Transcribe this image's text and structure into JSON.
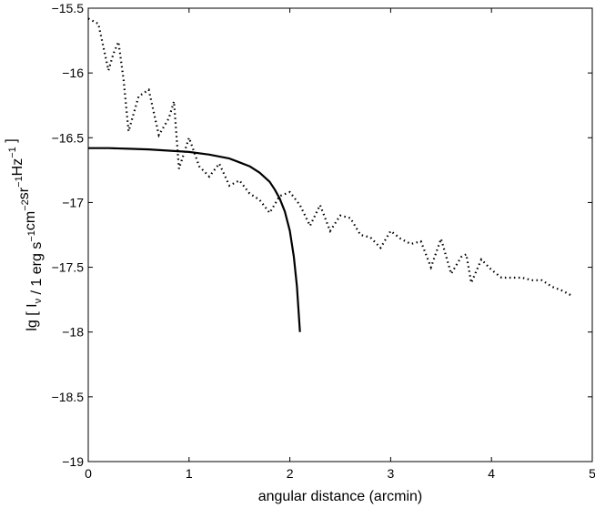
{
  "chart_data": {
    "type": "line",
    "xlabel": "angular distance (arcmin)",
    "ylabel": {
      "text": "lg [ I / 1 erg s cm sr Hz ]",
      "parts": [
        {
          "t": "lg [ I"
        },
        {
          "t": "ν",
          "sub": true
        },
        {
          "t": " / 1 erg s"
        },
        {
          "t": "−1",
          "sup": true
        },
        {
          "t": "cm"
        },
        {
          "t": "−2",
          "sup": true
        },
        {
          "t": "sr"
        },
        {
          "t": "−1",
          "sup": true
        },
        {
          "t": "Hz"
        },
        {
          "t": "−1",
          "sup": true
        },
        {
          "t": " ]"
        }
      ]
    },
    "xlim": [
      0,
      5
    ],
    "ylim": [
      -19,
      -15.5
    ],
    "xticks": [
      0,
      1,
      2,
      3,
      4,
      5
    ],
    "yticks": [
      -19,
      -18.5,
      -18,
      -17.5,
      -17,
      -16.5,
      -16,
      -15.5
    ],
    "xtick_labels": [
      "0",
      "1",
      "2",
      "3",
      "4",
      "5"
    ],
    "ytick_labels": [
      "−19",
      "−18.5",
      "−18",
      "−17.5",
      "−17",
      "−16.5",
      "−16",
      "−15.5"
    ],
    "grid": false,
    "series": [
      {
        "style": "solid",
        "color": "#000000",
        "x": [
          0,
          0.2,
          0.4,
          0.6,
          0.8,
          1.0,
          1.2,
          1.4,
          1.5,
          1.6,
          1.7,
          1.8,
          1.85,
          1.9,
          1.95,
          2.0,
          2.04,
          2.07,
          2.1
        ],
        "y": [
          -16.58,
          -16.58,
          -16.585,
          -16.59,
          -16.6,
          -16.61,
          -16.63,
          -16.66,
          -16.69,
          -16.72,
          -16.77,
          -16.84,
          -16.9,
          -16.97,
          -17.07,
          -17.22,
          -17.42,
          -17.65,
          -18.0
        ]
      },
      {
        "style": "dotted",
        "color": "#000000",
        "x": [
          0,
          0.1,
          0.2,
          0.25,
          0.3,
          0.35,
          0.4,
          0.5,
          0.6,
          0.7,
          0.8,
          0.85,
          0.9,
          1.0,
          1.1,
          1.2,
          1.3,
          1.4,
          1.5,
          1.6,
          1.7,
          1.8,
          1.9,
          2.0,
          2.1,
          2.2,
          2.3,
          2.4,
          2.5,
          2.6,
          2.7,
          2.8,
          2.9,
          3.0,
          3.1,
          3.2,
          3.3,
          3.4,
          3.5,
          3.6,
          3.7,
          3.75,
          3.8,
          3.9,
          4.0,
          4.1,
          4.2,
          4.3,
          4.4,
          4.5,
          4.6,
          4.7,
          4.8
        ],
        "y": [
          -15.58,
          -15.62,
          -15.98,
          -15.85,
          -15.76,
          -16.05,
          -16.45,
          -16.18,
          -16.13,
          -16.48,
          -16.35,
          -16.22,
          -16.74,
          -16.5,
          -16.72,
          -16.8,
          -16.7,
          -16.87,
          -16.83,
          -16.93,
          -16.98,
          -17.08,
          -16.95,
          -16.92,
          -17.02,
          -17.18,
          -17.02,
          -17.22,
          -17.1,
          -17.12,
          -17.25,
          -17.27,
          -17.35,
          -17.22,
          -17.28,
          -17.32,
          -17.3,
          -17.5,
          -17.28,
          -17.55,
          -17.42,
          -17.4,
          -17.62,
          -17.44,
          -17.52,
          -17.58,
          -17.58,
          -17.58,
          -17.6,
          -17.6,
          -17.65,
          -17.68,
          -17.72
        ]
      }
    ]
  }
}
